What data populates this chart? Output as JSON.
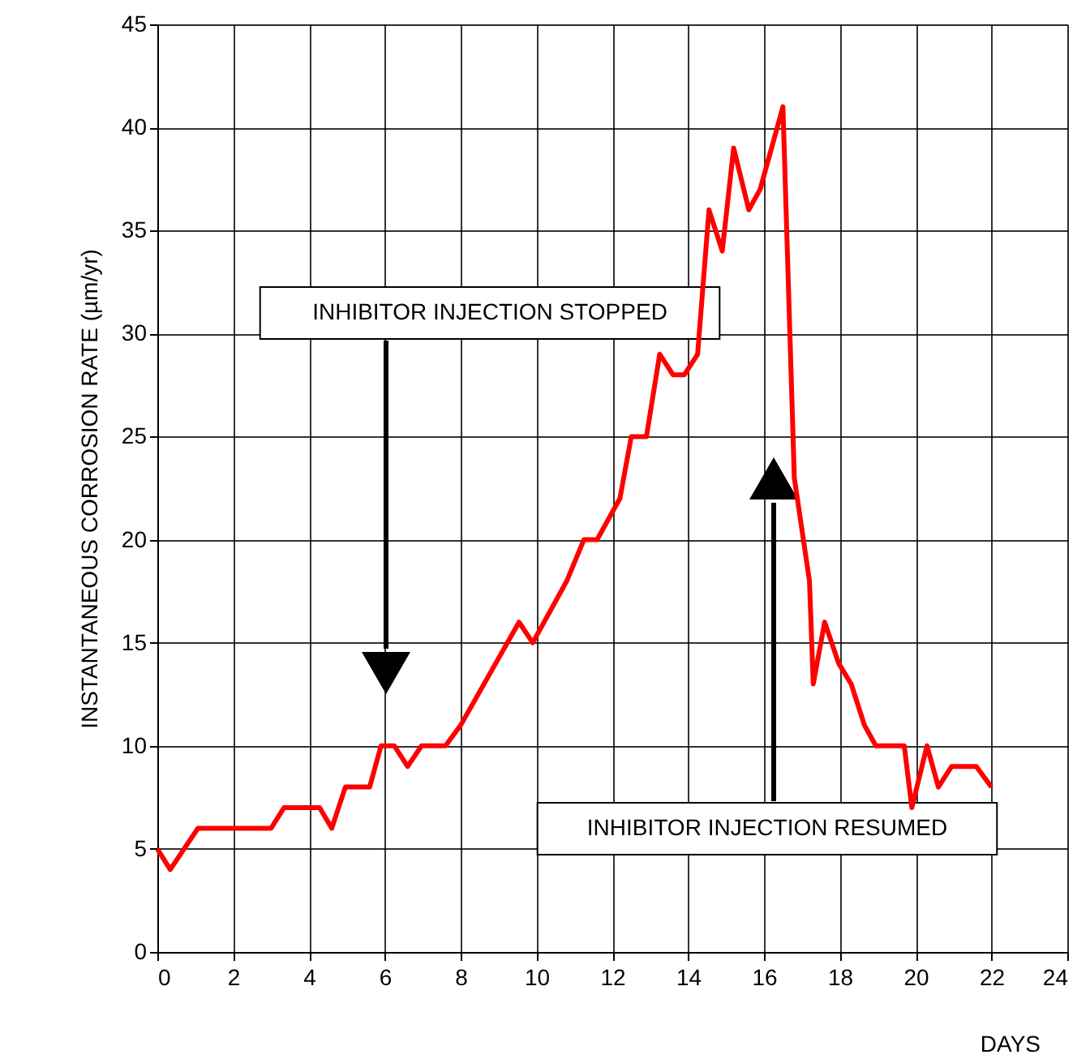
{
  "chart_data": {
    "type": "line",
    "xlabel": "DAYS",
    "ylabel": "INSTANTANEOUS CORROSION RATE (µm/yr)",
    "series": [
      {
        "color": "#ff0000",
        "x": [
          0,
          0.34,
          1.07,
          3.0,
          3.34,
          4.28,
          4.6,
          4.96,
          5.6,
          5.9,
          6.25,
          6.6,
          6.97,
          7.6,
          8.0,
          9.54,
          9.9,
          10.8,
          11.25,
          11.6,
          12.2,
          12.5,
          12.9,
          13.25,
          13.6,
          13.9,
          14.25,
          14.55,
          14.9,
          15.2,
          15.6,
          15.9,
          16.5,
          16.8,
          17.2,
          17.3,
          17.6,
          17.97,
          18.3,
          18.65,
          18.95,
          19.7,
          19.9,
          20.3,
          20.6,
          20.95,
          21.6,
          22.0
        ],
        "values": [
          5,
          4,
          6,
          6,
          7,
          7,
          6,
          8,
          8,
          10,
          10,
          9,
          10,
          10,
          11,
          16,
          15,
          18,
          20,
          20,
          22,
          25,
          25,
          29,
          28,
          28,
          29,
          36,
          34,
          39,
          36,
          37,
          41,
          23,
          18,
          13,
          16,
          14,
          13,
          11,
          10,
          10,
          7,
          10,
          8,
          9,
          9,
          8
        ]
      }
    ],
    "xlim": [
      0,
      24
    ],
    "xticks": [
      0,
      2,
      4,
      6,
      8,
      10,
      12,
      14,
      16,
      18,
      20,
      22,
      24
    ],
    "ylim": [
      0,
      45
    ],
    "yticks": [
      0,
      5,
      10,
      15,
      20,
      25,
      30,
      35,
      40,
      45
    ],
    "grid": true,
    "marker": "none",
    "line_style": "solid",
    "annotations": [
      "INHIBITOR INJECTION STOPPED",
      "INHIBITOR INJECTION RESUMED"
    ]
  }
}
